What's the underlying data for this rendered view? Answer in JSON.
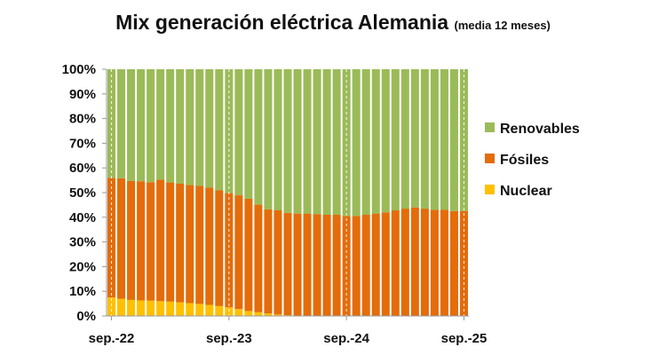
{
  "chart_data": {
    "type": "bar",
    "stacked": true,
    "title": "Mix generación eléctrica Alemania",
    "subtitle": "(media 12 meses)",
    "x_tick_labels": [
      "sep.-22",
      "sep.-23",
      "sep.-24",
      "sep.-25"
    ],
    "y_tick_labels": [
      "0%",
      "10%",
      "20%",
      "30%",
      "40%",
      "50%",
      "60%",
      "70%",
      "80%",
      "90%",
      "100%"
    ],
    "ylim": [
      0,
      100
    ],
    "categories": [
      "sep.-22",
      "oct.-22",
      "nov.-22",
      "dic.-22",
      "ene.-23",
      "feb.-23",
      "mar.-23",
      "abr.-23",
      "may.-23",
      "jun.-23",
      "jul.-23",
      "ago.-23",
      "sep.-23",
      "oct.-23",
      "nov.-23",
      "dic.-23",
      "ene.-24",
      "feb.-24",
      "mar.-24",
      "abr.-24",
      "may.-24",
      "jun.-24",
      "jul.-24",
      "ago.-24",
      "sep.-24",
      "oct.-24",
      "nov.-24",
      "dic.-24",
      "ene.-25",
      "feb.-25",
      "mar.-25",
      "abr.-25",
      "may.-25",
      "jun.-25",
      "jul.-25",
      "ago.-25",
      "sep.-25"
    ],
    "series": [
      {
        "name": "Nuclear",
        "color": "#FFC000",
        "values": [
          7.5,
          7.0,
          6.5,
          6.3,
          6.2,
          6.0,
          5.8,
          5.5,
          5.2,
          4.9,
          4.5,
          4.0,
          3.5,
          2.8,
          2.0,
          1.5,
          1.0,
          0.6,
          0.3,
          0,
          0,
          0,
          0,
          0,
          0,
          0,
          0,
          0,
          0,
          0,
          0,
          0,
          0,
          0,
          0,
          0,
          0
        ]
      },
      {
        "name": "Fósiles",
        "color": "#E46C0A",
        "values": [
          48.5,
          48.8,
          48.2,
          48.3,
          48.0,
          49.2,
          48.3,
          48.1,
          47.9,
          47.8,
          47.5,
          46.9,
          46.3,
          46.1,
          45.5,
          43.6,
          42.2,
          42.2,
          41.5,
          41.5,
          41.5,
          41.3,
          41.0,
          41.0,
          40.5,
          40.5,
          41.0,
          41.5,
          42.0,
          42.8,
          43.5,
          44.0,
          43.5,
          43.0,
          43.0,
          42.5,
          42.5
        ]
      },
      {
        "name": "Renovables",
        "color": "#9BBB59",
        "values": [
          44.0,
          44.2,
          45.3,
          45.4,
          45.8,
          44.8,
          45.9,
          46.4,
          46.9,
          47.3,
          48.0,
          49.1,
          50.2,
          51.1,
          52.5,
          54.9,
          56.8,
          57.2,
          58.2,
          58.5,
          58.5,
          58.7,
          59.0,
          59.0,
          59.5,
          59.5,
          59.0,
          58.5,
          58.0,
          57.2,
          56.5,
          56.0,
          56.5,
          57.0,
          57.0,
          57.5,
          57.5
        ]
      }
    ],
    "legend": {
      "position": "right",
      "order": [
        "Renovables",
        "Fósiles",
        "Nuclear"
      ]
    },
    "grid": false
  }
}
